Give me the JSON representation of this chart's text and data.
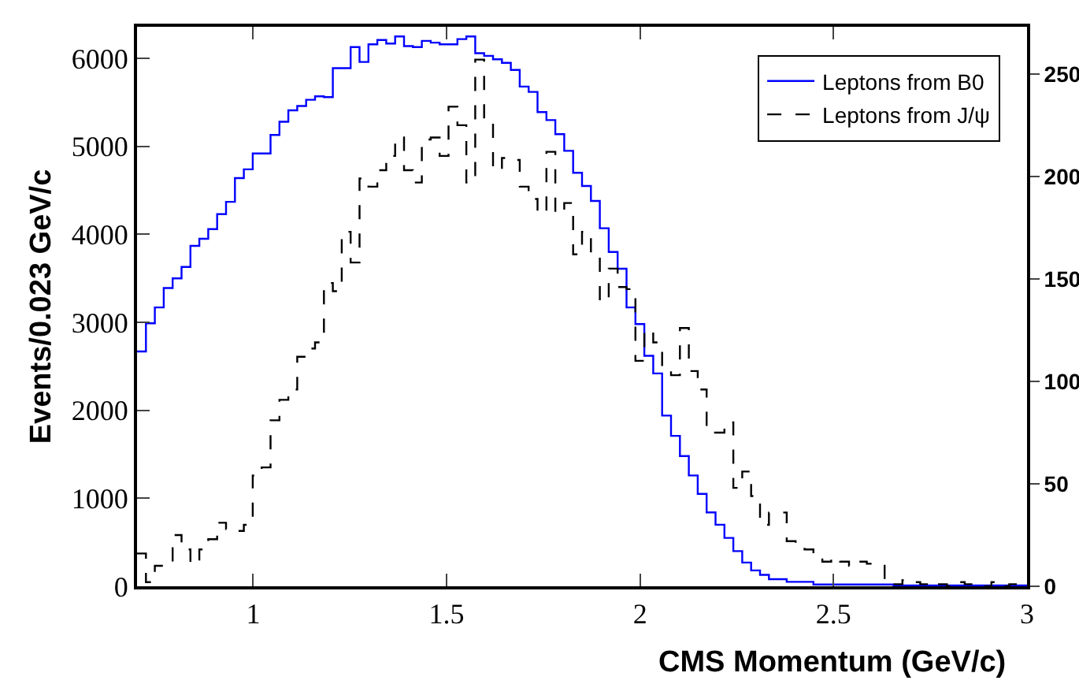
{
  "chart_data": {
    "type": "histogram",
    "xlabel": "CMS Momentum (GeV/c)",
    "ylabel": "Events/0.023 GeV/c",
    "bins": [
      0.7,
      0.723,
      0.746,
      0.769,
      0.792,
      0.815,
      0.838,
      0.861,
      0.884,
      0.907,
      0.93,
      0.953,
      0.976,
      0.999,
      1.022,
      1.045,
      1.068,
      1.091,
      1.114,
      1.137,
      1.16,
      1.183,
      1.206,
      1.229,
      1.252,
      1.275,
      1.298,
      1.321,
      1.344,
      1.367,
      1.39,
      1.413,
      1.436,
      1.459,
      1.482,
      1.505,
      1.528,
      1.551,
      1.574,
      1.597,
      1.62,
      1.643,
      1.666,
      1.689,
      1.712,
      1.735,
      1.758,
      1.781,
      1.804,
      1.827,
      1.85,
      1.873,
      1.896,
      1.919,
      1.942,
      1.965,
      1.988,
      2.011,
      2.034,
      2.057,
      2.08,
      2.103,
      2.126,
      2.149,
      2.172,
      2.195,
      2.218,
      2.241,
      2.264,
      2.287,
      2.31,
      2.333,
      2.356,
      2.379,
      2.402,
      2.425,
      2.448,
      2.471,
      2.494,
      2.517,
      2.54,
      2.563,
      2.586,
      2.609,
      2.632,
      2.655,
      2.678,
      2.701,
      2.724,
      2.747,
      2.77,
      2.793,
      2.816,
      2.839,
      2.862,
      2.885,
      2.908,
      2.931,
      2.954,
      2.977,
      3.0
    ],
    "series": [
      {
        "name": "Leptons from B0",
        "color": "#0000ff",
        "line_style": "solid",
        "values": [
          2670,
          2990,
          3170,
          3390,
          3500,
          3630,
          3870,
          3950,
          4060,
          4230,
          4370,
          4640,
          4740,
          4920,
          4920,
          5130,
          5280,
          5410,
          5460,
          5530,
          5570,
          5560,
          5890,
          5890,
          6130,
          5960,
          6160,
          6210,
          6170,
          6250,
          6140,
          6130,
          6200,
          6180,
          6160,
          6160,
          6220,
          6250,
          6060,
          6030,
          5990,
          5950,
          5870,
          5680,
          5620,
          5390,
          5300,
          5140,
          4950,
          4700,
          4550,
          4380,
          4070,
          3800,
          3610,
          3170,
          2980,
          2620,
          2420,
          1940,
          1710,
          1480,
          1260,
          1050,
          840,
          700,
          550,
          400,
          270,
          180,
          130,
          80,
          80,
          50,
          50,
          50,
          20,
          20,
          20,
          20,
          20,
          20,
          20,
          20,
          20,
          10,
          10,
          10,
          10,
          10,
          10,
          10,
          10,
          10,
          10,
          10,
          10,
          10,
          10,
          10
        ]
      },
      {
        "name": "Leptons from J/ψ",
        "color": "#000000",
        "line_style": "dashed",
        "axis": "y2",
        "values": [
          16,
          2,
          10,
          10,
          25,
          18,
          11,
          18,
          23,
          31,
          28,
          27,
          30,
          54,
          58,
          81,
          91,
          96,
          112,
          116,
          119,
          148,
          144,
          173,
          158,
          199,
          195,
          203,
          210,
          219,
          203,
          197,
          218,
          219,
          210,
          234,
          225,
          197,
          257,
          228,
          203,
          209,
          208,
          195,
          189,
          182,
          212,
          182,
          187,
          162,
          173,
          162,
          139,
          155,
          146,
          145,
          110,
          125,
          119,
          107,
          103,
          126,
          105,
          96,
          75,
          75,
          80,
          48,
          56,
          44,
          30,
          36,
          36,
          22,
          20,
          18,
          14,
          12,
          14,
          12,
          10,
          12,
          11,
          10,
          2,
          1,
          3,
          2,
          1,
          2,
          1,
          0,
          2,
          1,
          1,
          0,
          2,
          0,
          1,
          0
        ]
      }
    ],
    "xlim": [
      0.7,
      3
    ],
    "xticks": [
      1,
      1.5,
      2,
      2.5,
      3
    ],
    "ylim": [
      0,
      6360
    ],
    "yticks": [
      0,
      1000,
      2000,
      3000,
      4000,
      5000,
      6000
    ],
    "y2lim": [
      0,
      273
    ],
    "y2ticks": [
      0,
      50,
      100,
      150,
      200,
      250
    ],
    "grid": false,
    "legend": "top right"
  }
}
